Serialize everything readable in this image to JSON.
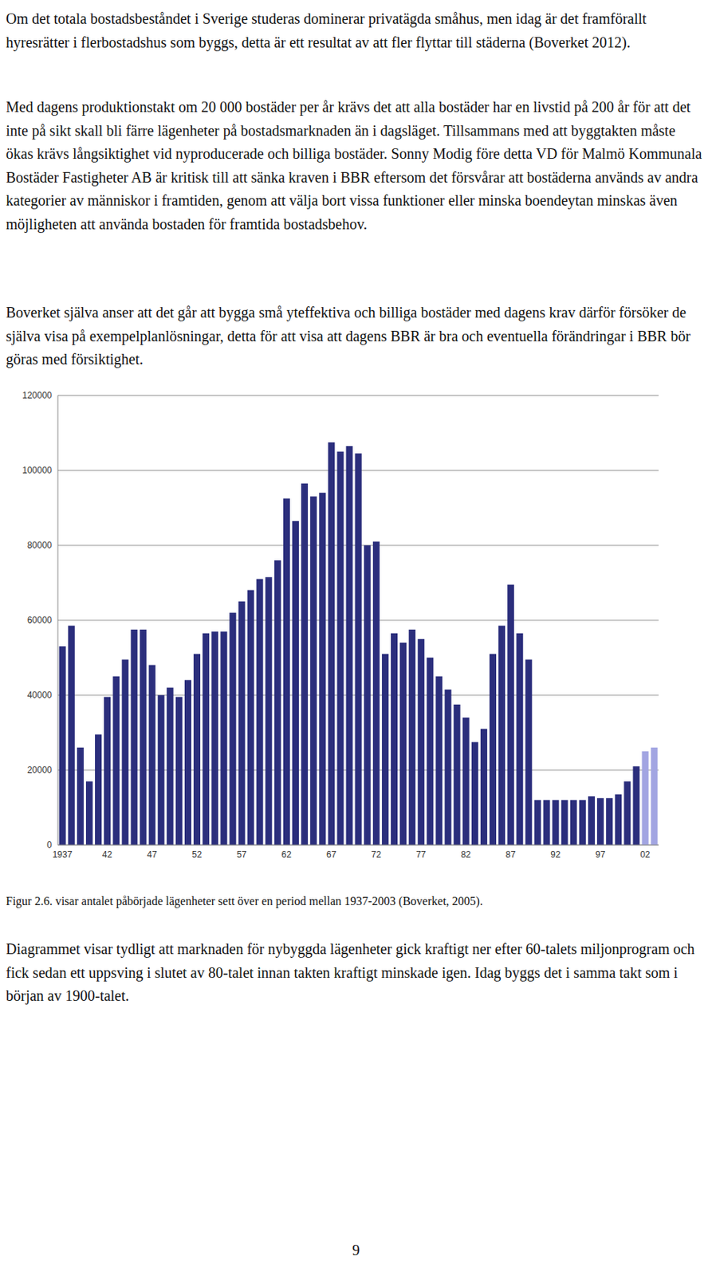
{
  "paragraphs": [
    "Om det totala bostadsbeståndet i Sverige studeras dominerar privatägda småhus, men idag är det framförallt hyresrätter i flerbostadshus som byggs, detta är ett resultat av att fler flyttar till städerna (Boverket 2012).",
    "Med dagens produktionstakt om 20 000 bostäder per år krävs det att alla bostäder har en livstid på 200 år för att det inte på sikt skall bli färre lägenheter på bostadsmarknaden än i dagsläget. Tillsammans med att byggtakten måste ökas krävs långsiktighet vid nyproducerade och billiga bostäder. Sonny Modig före detta VD för Malmö Kommunala Bostäder Fastigheter AB är kritisk till att sänka kraven i BBR eftersom det försvårar att bostäderna används av andra kategorier av människor i framtiden, genom att välja bort vissa funktioner eller minska boendeytan minskas även möjligheten att använda bostaden för framtida bostadsbehov.",
    "Boverket själva anser att det går att bygga små yteffektiva och billiga bostäder med dagens krav därför försöker de själva visa på exempelplanlösningar, detta för att visa att dagens BBR är bra och eventuella förändringar i BBR bör göras med försiktighet."
  ],
  "chart_data": {
    "type": "bar",
    "categories": [
      "1937",
      null,
      null,
      null,
      null,
      "42",
      null,
      null,
      null,
      null,
      "47",
      null,
      null,
      null,
      null,
      "52",
      null,
      null,
      null,
      null,
      "57",
      null,
      null,
      null,
      null,
      "62",
      null,
      null,
      null,
      null,
      "67",
      null,
      null,
      null,
      null,
      "72",
      null,
      null,
      null,
      null,
      "77",
      null,
      null,
      null,
      null,
      "82",
      null,
      null,
      null,
      null,
      "87",
      null,
      null,
      null,
      null,
      "92",
      null,
      null,
      null,
      null,
      "97",
      null,
      null,
      null,
      null,
      "02",
      null
    ],
    "values": [
      53000,
      58500,
      26000,
      17000,
      29500,
      39500,
      45000,
      49500,
      57500,
      57500,
      48000,
      40000,
      42000,
      39500,
      44000,
      51000,
      56500,
      57000,
      57000,
      62000,
      65000,
      68000,
      71000,
      71500,
      76000,
      92500,
      86500,
      96500,
      93000,
      94000,
      107500,
      105000,
      106500,
      104500,
      80000,
      81000,
      51000,
      56500,
      54000,
      57500,
      55000,
      50000,
      45000,
      41500,
      37500,
      34000,
      27500,
      31000,
      51000,
      58500,
      69500,
      56500,
      49500,
      12000,
      12000,
      12000,
      12000,
      12000,
      12000,
      13000,
      12500,
      12500,
      13500,
      17000,
      21000,
      25000,
      26000
    ],
    "colors": [
      "#2b2e7c",
      "#2b2e7c",
      "#2b2e7c",
      "#2b2e7c",
      "#2b2e7c",
      "#2b2e7c",
      "#2b2e7c",
      "#2b2e7c",
      "#2b2e7c",
      "#2b2e7c",
      "#2b2e7c",
      "#2b2e7c",
      "#2b2e7c",
      "#2b2e7c",
      "#2b2e7c",
      "#2b2e7c",
      "#2b2e7c",
      "#2b2e7c",
      "#2b2e7c",
      "#2b2e7c",
      "#2b2e7c",
      "#2b2e7c",
      "#2b2e7c",
      "#2b2e7c",
      "#2b2e7c",
      "#2b2e7c",
      "#2b2e7c",
      "#2b2e7c",
      "#2b2e7c",
      "#2b2e7c",
      "#2b2e7c",
      "#2b2e7c",
      "#2b2e7c",
      "#2b2e7c",
      "#2b2e7c",
      "#2b2e7c",
      "#2b2e7c",
      "#2b2e7c",
      "#2b2e7c",
      "#2b2e7c",
      "#2b2e7c",
      "#2b2e7c",
      "#2b2e7c",
      "#2b2e7c",
      "#2b2e7c",
      "#2b2e7c",
      "#2b2e7c",
      "#2b2e7c",
      "#2b2e7c",
      "#2b2e7c",
      "#2b2e7c",
      "#2b2e7c",
      "#2b2e7c",
      "#2b2e7c",
      "#2b2e7c",
      "#2b2e7c",
      "#2b2e7c",
      "#2b2e7c",
      "#2b2e7c",
      "#2b2e7c",
      "#2b2e7c",
      "#2b2e7c",
      "#2b2e7c",
      "#2b2e7c",
      "#2b2e7c",
      "#a2a5e2",
      "#a2a5e2"
    ],
    "ylim": [
      0,
      120000
    ],
    "yticks": [
      0,
      20000,
      40000,
      60000,
      80000,
      100000,
      120000
    ],
    "grid": true
  },
  "caption": "Figur 2.6. visar antalet påbörjade lägenheter sett över en period mellan 1937-2003 (Boverket, 2005).",
  "closing_paragraph": "Diagrammet visar tydligt att marknaden för nybyggda lägenheter gick kraftigt ner efter 60-talets miljonprogram och fick sedan ett uppsving i slutet av 80-talet innan takten kraftigt minskade igen. Idag byggs det i samma takt som i början av 1900-talet.",
  "page_number": "9"
}
